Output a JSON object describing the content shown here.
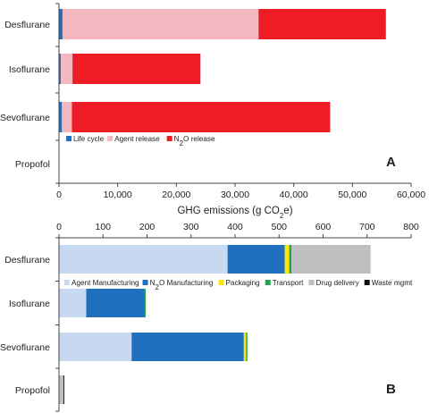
{
  "chart_data": [
    {
      "type": "bar",
      "orientation": "horizontal",
      "stacked": true,
      "panel_letter": "A",
      "categories": [
        "Desflurane",
        "Isoflurane",
        "Sevoflurane",
        "Propofol"
      ],
      "series": [
        {
          "name": "Life cycle",
          "color": "#1f6fbf",
          "values": [
            600,
            300,
            500,
            0
          ]
        },
        {
          "name": "Agent release",
          "color": "#f4b9c0",
          "values": [
            33400,
            2000,
            1700,
            0
          ]
        },
        {
          "name": "N2O release",
          "color": "#ee1c25",
          "values": [
            21700,
            21800,
            44000,
            0
          ]
        }
      ],
      "xlabel": "GHG emissions (g CO2e)",
      "xlim": [
        0,
        60000
      ],
      "xticks": [
        "0",
        "10,000",
        "20,000",
        "30,000",
        "40,000",
        "50,000",
        "60,000"
      ],
      "xtick_values": [
        0,
        10000,
        20000,
        30000,
        40000,
        50000,
        60000
      ],
      "legend_placement": "lower-middle"
    },
    {
      "type": "bar",
      "orientation": "horizontal",
      "stacked": true,
      "panel_letter": "B",
      "categories": [
        "Desflurane",
        "Isoflurane",
        "Sevoflurane",
        "Propofol"
      ],
      "series": [
        {
          "name": "Agent Manufacturing",
          "color": "#c6d9f1",
          "values": [
            383,
            62,
            165,
            0
          ]
        },
        {
          "name": "N2O Manufacturing",
          "color": "#1f6fbf",
          "values": [
            130,
            132,
            255,
            0
          ]
        },
        {
          "name": "Packaging",
          "color": "#ffe500",
          "values": [
            10,
            0,
            5,
            0
          ]
        },
        {
          "name": "Transport",
          "color": "#1ea54b",
          "values": [
            5,
            3,
            3,
            0
          ]
        },
        {
          "name": "Drug delivery",
          "color": "#bfbfbf",
          "values": [
            180,
            0,
            0,
            10
          ]
        },
        {
          "name": "Waste mgmt",
          "color": "#111111",
          "values": [
            0,
            0,
            0,
            2
          ]
        }
      ],
      "xlim": [
        0,
        800
      ],
      "xticks": [
        "0",
        "100",
        "200",
        "300",
        "400",
        "500",
        "600",
        "700",
        "800"
      ],
      "xtick_values": [
        0,
        100,
        200,
        300,
        400,
        500,
        600,
        700,
        800
      ],
      "xaxis_position": "top",
      "legend_placement": "upper-middle"
    }
  ]
}
